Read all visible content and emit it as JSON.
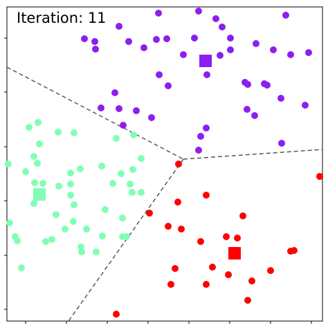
{
  "chart_data": {
    "type": "scatter",
    "title": "Iteration: 11",
    "xlim": [
      10,
      466
    ],
    "ylim": [
      464,
      10
    ],
    "xticks": [
      37,
      96,
      155,
      214,
      273,
      332,
      391,
      450
    ],
    "yticks": [
      55,
      133,
      212,
      290,
      369,
      447
    ],
    "series": [
      {
        "color": "#8b1fef",
        "x": [
          229,
          287,
          312,
          413,
          172,
          321,
          122,
          137,
          138,
          186,
          208,
          226,
          241,
          281,
          333,
          370,
          265,
          318,
          333,
          395,
          420,
          446,
          230,
          299,
          243,
          354,
          358,
          382,
          386,
          166,
          406,
          146,
          172,
          197,
          219,
          357,
          368,
          441,
          178,
          298,
          290,
          407,
          287
        ],
        "y": [
          19,
          16,
          27,
          22,
          38,
          39,
          56,
          60,
          71,
          60,
          69,
          57,
          56,
          55,
          55,
          63,
          79,
          80,
          72,
          72,
          79,
          76,
          108,
          108,
          124,
          119,
          122,
          121,
          123,
          134,
          142,
          156,
          157,
          160,
          170,
          158,
          167,
          152,
          181,
          185,
          197,
          207,
          217
        ]
      },
      {
        "color": "#80ffb4",
        "x": [
          42,
          55,
          84,
          107,
          168,
          193,
          57,
          49,
          54,
          37,
          102,
          116,
          147,
          175,
          192,
          204,
          12,
          50,
          62,
          85,
          102,
          163,
          188,
          191,
          204,
          49,
          102,
          107,
          152,
          14,
          81,
          94,
          106,
          125,
          177,
          22,
          25,
          66,
          75,
          117,
          118,
          148,
          177,
          183,
          31,
          139
        ],
        "y": [
          184,
          177,
          191,
          192,
          200,
          195,
          208,
          226,
          236,
          248,
          250,
          244,
          240,
          251,
          245,
          229,
          237,
          264,
          265,
          269,
          266,
          265,
          266,
          278,
          278,
          294,
          282,
          296,
          303,
          322,
          310,
          331,
          320,
          331,
          315,
          342,
          348,
          349,
          346,
          357,
          364,
          341,
          342,
          342,
          387,
          364
        ]
      },
      {
        "color": "#ff0000",
        "x": [
          258,
          462,
          298,
          257,
          216,
          351,
          243,
          262,
          290,
          327,
          343,
          420,
          425,
          253,
          391,
          307,
          330,
          364,
          247,
          298,
          358,
          168
        ],
        "y": [
          237,
          255,
          282,
          292,
          308,
          312,
          327,
          331,
          349,
          342,
          344,
          363,
          362,
          388,
          391,
          386,
          397,
          406,
          411,
          411,
          434,
          454
        ]
      }
    ],
    "centroids": {
      "marker": "square",
      "x": [
        297,
        57,
        339
      ],
      "y": [
        88,
        281,
        366
      ],
      "colors": [
        "#8b1fef",
        "#80ffb4",
        "#ff0000"
      ]
    },
    "boundaries": {
      "color": "#555555",
      "dashed": true,
      "lines": [
        {
          "x": [
            10,
            265
          ],
          "y": [
            97,
            230
          ]
        },
        {
          "x": [
            265,
            466
          ],
          "y": [
            230,
            216
          ]
        },
        {
          "x": [
            265,
            99
          ],
          "y": [
            230,
            464
          ]
        }
      ]
    }
  }
}
